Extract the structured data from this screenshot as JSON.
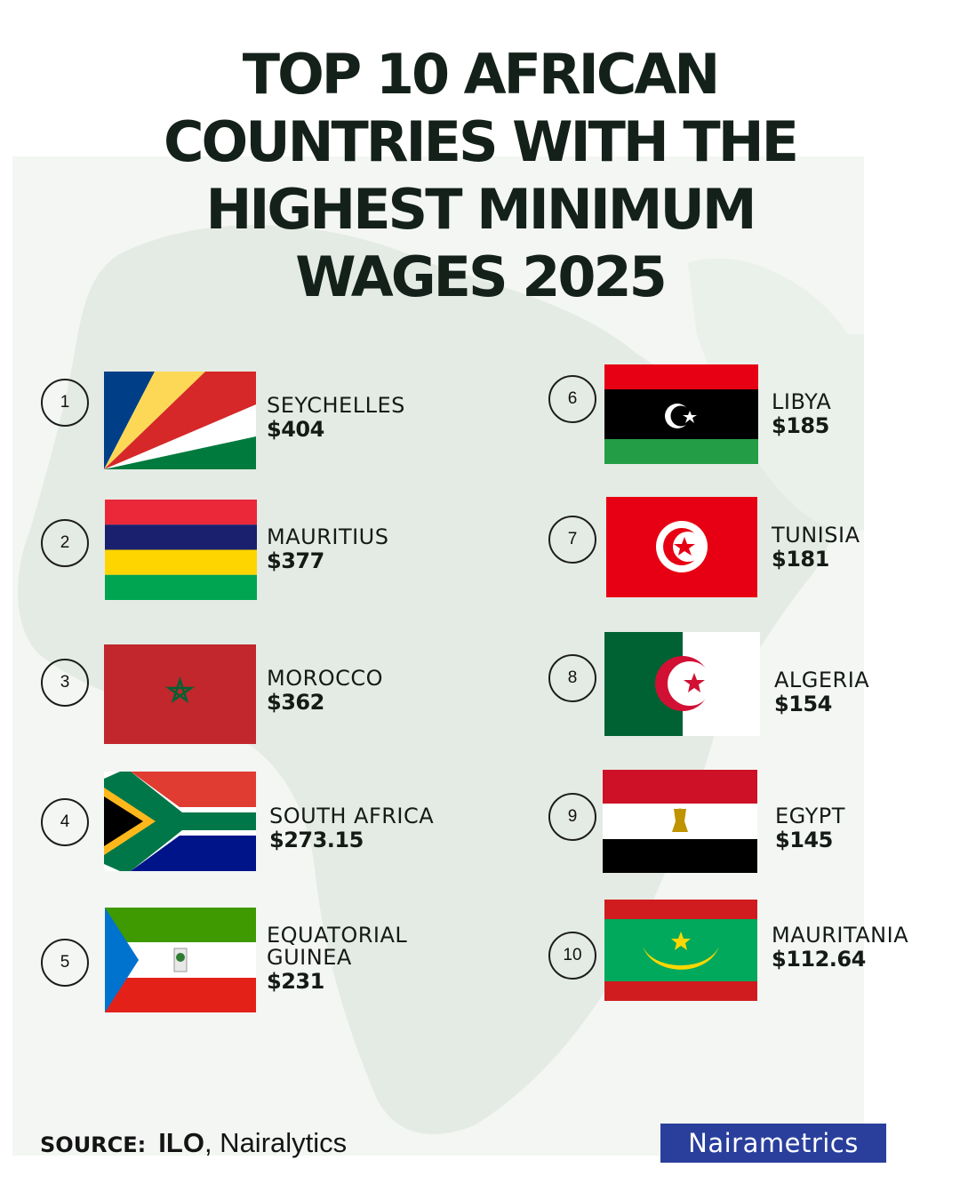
{
  "title": {
    "lines": [
      "TOP 10 AFRICAN",
      "COUNTRIES WITH THE",
      "HIGHEST MINIMUM",
      "WAGES 2025"
    ]
  },
  "rankings": [
    {
      "rank": "1",
      "country": "SEYCHELLES",
      "wage": "$404",
      "flag_icon": "seychelles-flag"
    },
    {
      "rank": "2",
      "country": "MAURITIUS",
      "wage": "$377",
      "flag_icon": "mauritius-flag"
    },
    {
      "rank": "3",
      "country": "MOROCCO",
      "wage": "$362",
      "flag_icon": "morocco-flag"
    },
    {
      "rank": "4",
      "country": "SOUTH AFRICA",
      "wage": "$273.15",
      "flag_icon": "south-africa-flag"
    },
    {
      "rank": "5",
      "country_line1": "EQUATORIAL",
      "country_line2": "GUINEA",
      "wage": "$231",
      "flag_icon": "equatorial-guinea-flag"
    },
    {
      "rank": "6",
      "country": "LIBYA",
      "wage": "$185",
      "flag_icon": "libya-flag"
    },
    {
      "rank": "7",
      "country": "TUNISIA",
      "wage": "$181",
      "flag_icon": "tunisia-flag"
    },
    {
      "rank": "8",
      "country": "ALGERIA",
      "wage": "$154",
      "flag_icon": "algeria-flag"
    },
    {
      "rank": "9",
      "country": "EGYPT",
      "wage": "$145",
      "flag_icon": "egypt-flag"
    },
    {
      "rank": "10",
      "country": "MAURITANIA",
      "wage": "$112.64",
      "flag_icon": "mauritania-flag"
    }
  ],
  "source": {
    "label": "SOURCE:",
    "primary": "ILO",
    "separator": ",",
    "secondary": " Nairalytics"
  },
  "brand": {
    "name": "Nairametrics",
    "color": "#2a3f9c"
  },
  "colors": {
    "title": "#14211a",
    "map": "#e6ede6"
  }
}
